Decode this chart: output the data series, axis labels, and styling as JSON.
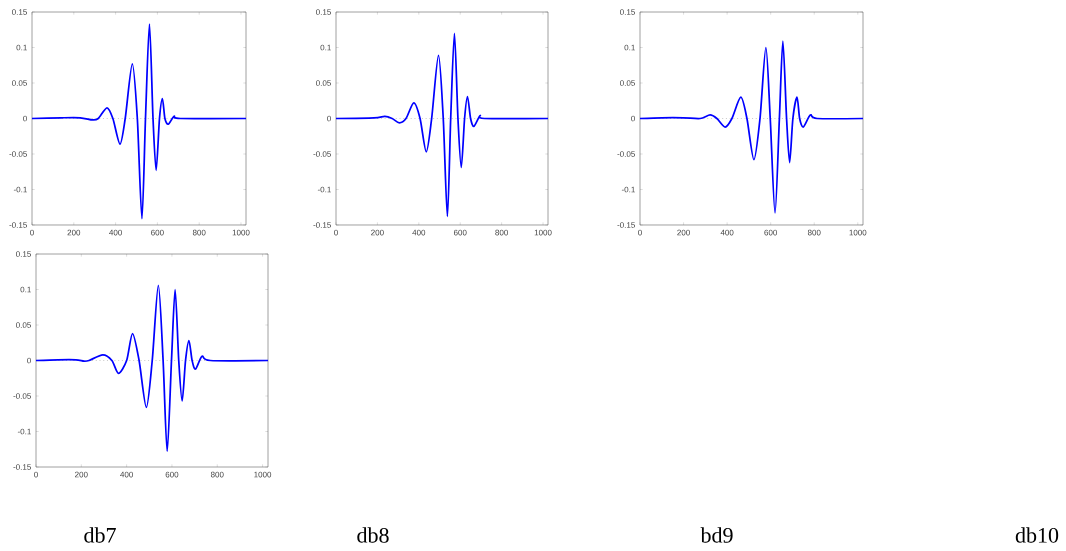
{
  "chart_data": [
    {
      "type": "line",
      "xlim": [
        0,
        1024
      ],
      "ylim": [
        -0.15,
        0.15
      ],
      "xticks": [
        0,
        200,
        400,
        600,
        800,
        1000
      ],
      "yticks": [
        -0.15,
        -0.1,
        -0.05,
        0,
        0.05,
        0.1,
        0.15
      ],
      "ref_lines": [
        {
          "axis": "y",
          "value": 0,
          "color": "#cccccc",
          "line_style": "dotted"
        }
      ],
      "x": [
        0,
        140,
        231,
        290,
        317,
        359,
        387,
        421,
        446,
        480,
        504,
        526,
        543,
        562,
        579,
        594,
        610,
        624,
        636,
        652,
        680,
        710,
        1024
      ],
      "series": [
        {
          "color": "#0000ff",
          "values": [
            0,
            0.001,
            0.001,
            -0.002,
            0,
            0.015,
            0,
            -0.036,
            0,
            0.077,
            0,
            -0.141,
            0,
            0.133,
            0,
            -0.073,
            0,
            0.028,
            0,
            -0.008,
            0.003,
            0,
            0
          ]
        }
      ]
    },
    {
      "type": "line",
      "xlim": [
        0,
        1024
      ],
      "ylim": [
        -0.15,
        0.15
      ],
      "xticks": [
        0,
        200,
        400,
        600,
        800,
        1000
      ],
      "yticks": [
        -0.15,
        -0.1,
        -0.05,
        0,
        0.05,
        0.1,
        0.15
      ],
      "ref_lines": [
        {
          "axis": "y",
          "value": 0,
          "color": "#cccccc",
          "line_style": "dotted"
        }
      ],
      "x": [
        0,
        183,
        236,
        271,
        306,
        338,
        376,
        406,
        436,
        462,
        495,
        518,
        538,
        554,
        572,
        589,
        605,
        621,
        635,
        650,
        666,
        696,
        717,
        1024
      ],
      "series": [
        {
          "color": "#0000ff",
          "values": [
            0,
            0.001,
            0.003,
            0,
            -0.006,
            0,
            0.022,
            0,
            -0.047,
            0,
            0.089,
            0,
            -0.138,
            0,
            0.12,
            0,
            -0.069,
            0,
            0.031,
            0,
            -0.011,
            0.004,
            0,
            0
          ]
        }
      ]
    },
    {
      "type": "line",
      "xlim": [
        0,
        1024
      ],
      "ylim": [
        -0.15,
        0.15
      ],
      "xticks": [
        0,
        200,
        400,
        600,
        800,
        1000
      ],
      "yticks": [
        -0.15,
        -0.1,
        -0.05,
        0,
        0.05,
        0.1,
        0.15
      ],
      "ref_lines": [
        {
          "axis": "y",
          "value": 0,
          "color": "#cccccc",
          "line_style": "dotted"
        }
      ],
      "x": [
        0,
        100,
        199,
        276,
        322,
        353,
        391,
        422,
        463,
        491,
        523,
        551,
        578,
        598,
        620,
        640,
        656,
        673,
        687,
        702,
        721,
        733,
        750,
        782,
        813,
        1024
      ],
      "series": [
        {
          "color": "#0000ff",
          "values": [
            0,
            0.001,
            0.001,
            0,
            0.005,
            0,
            -0.012,
            0,
            0.03,
            0,
            -0.058,
            0,
            0.1,
            0,
            -0.133,
            0,
            0.109,
            0,
            -0.062,
            0,
            0.03,
            0,
            -0.012,
            0.005,
            0,
            0
          ]
        }
      ]
    },
    {
      "type": "line",
      "xlim": [
        0,
        1024
      ],
      "ylim": [
        -0.15,
        0.15
      ],
      "xticks": [
        0,
        200,
        400,
        600,
        800,
        1000
      ],
      "yticks": [
        -0.15,
        -0.1,
        -0.05,
        0,
        0.05,
        0.1,
        0.15
      ],
      "ref_lines": [
        {
          "axis": "y",
          "value": 0,
          "color": "#cccccc",
          "line_style": "dotted"
        }
      ],
      "x": [
        0,
        97,
        176,
        212,
        234,
        295,
        335,
        364,
        400,
        426,
        455,
        487,
        513,
        540,
        561,
        579,
        598,
        614,
        630,
        645,
        660,
        675,
        689,
        704,
        733,
        769,
        1024
      ],
      "series": [
        {
          "color": "#0000ff",
          "values": [
            0,
            0.001,
            0.001,
            -0.001,
            0,
            0.008,
            0,
            -0.018,
            0,
            0.038,
            0,
            -0.066,
            0,
            0.106,
            0,
            -0.128,
            0,
            0.1,
            0,
            -0.057,
            0,
            0.028,
            0,
            -0.012,
            0.006,
            0,
            0
          ]
        }
      ]
    },
    {
      "type": "other",
      "annotations": [
        "db7",
        "db8",
        "bd9",
        "db10"
      ]
    }
  ]
}
